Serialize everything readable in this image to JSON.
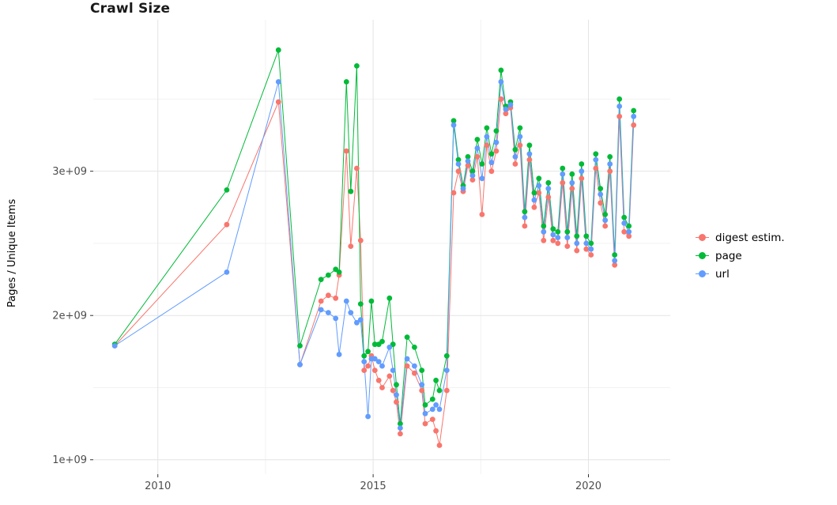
{
  "chart_data": {
    "type": "line",
    "title": "Crawl Size",
    "xlabel": "",
    "ylabel": "Pages / Unique Items",
    "y_unit": "values in billions (1e9)",
    "xlim": [
      2008.5,
      2021.9
    ],
    "ylim_billions": [
      0.9,
      4.05
    ],
    "grid": "major light-gray gridlines on white panel",
    "legend_position": "right",
    "x_ticks": [
      {
        "value": 2010,
        "label": "2010"
      },
      {
        "value": 2015,
        "label": "2015"
      },
      {
        "value": 2020,
        "label": "2020"
      }
    ],
    "y_ticks": [
      {
        "value": 1,
        "label": "1e+09"
      },
      {
        "value": 2,
        "label": "2e+09"
      },
      {
        "value": 3,
        "label": "3e+09"
      }
    ],
    "x_minor": [
      2012.5,
      2017.5
    ],
    "y_minor": [
      1.5,
      2.5,
      3.5
    ],
    "x": [
      2009.0,
      2011.6,
      2012.8,
      2013.3,
      2013.79,
      2013.96,
      2014.13,
      2014.21,
      2014.38,
      2014.48,
      2014.62,
      2014.71,
      2014.79,
      2014.88,
      2014.96,
      2015.04,
      2015.13,
      2015.21,
      2015.38,
      2015.46,
      2015.54,
      2015.63,
      2015.79,
      2015.96,
      2016.13,
      2016.21,
      2016.38,
      2016.46,
      2016.54,
      2016.71,
      2016.87,
      2016.98,
      2017.09,
      2017.2,
      2017.31,
      2017.42,
      2017.53,
      2017.64,
      2017.75,
      2017.86,
      2017.97,
      2018.08,
      2018.19,
      2018.3,
      2018.41,
      2018.52,
      2018.63,
      2018.74,
      2018.85,
      2018.96,
      2019.07,
      2019.18,
      2019.29,
      2019.4,
      2019.51,
      2019.62,
      2019.73,
      2019.84,
      2019.95,
      2020.06,
      2020.17,
      2020.28,
      2020.39,
      2020.5,
      2020.61,
      2020.72,
      2020.83,
      2020.94,
      2021.05
    ],
    "series": [
      {
        "name": "digest estim.",
        "color": "#F8766D",
        "values": [
          1.79,
          2.63,
          3.48,
          1.66,
          2.1,
          2.14,
          2.12,
          2.28,
          3.14,
          2.48,
          3.02,
          2.52,
          1.62,
          1.65,
          1.72,
          1.62,
          1.55,
          1.5,
          1.58,
          1.48,
          1.4,
          1.18,
          1.65,
          1.6,
          1.48,
          1.25,
          1.28,
          1.2,
          1.1,
          1.48,
          2.85,
          3.0,
          2.86,
          3.04,
          2.94,
          3.1,
          2.7,
          3.18,
          3.0,
          3.14,
          3.5,
          3.4,
          3.44,
          3.05,
          3.18,
          2.62,
          3.08,
          2.75,
          2.85,
          2.52,
          2.82,
          2.52,
          2.5,
          2.92,
          2.48,
          2.88,
          2.45,
          2.95,
          2.46,
          2.42,
          3.02,
          2.78,
          2.62,
          3.0,
          2.35,
          3.38,
          2.58,
          2.55,
          3.32
        ]
      },
      {
        "name": "page",
        "color": "#00BA38",
        "values": [
          1.8,
          2.87,
          3.84,
          1.79,
          2.25,
          2.28,
          2.32,
          2.3,
          3.62,
          2.86,
          3.73,
          2.08,
          1.72,
          1.75,
          2.1,
          1.8,
          1.8,
          1.82,
          2.12,
          1.8,
          1.52,
          1.25,
          1.85,
          1.78,
          1.62,
          1.38,
          1.42,
          1.55,
          1.48,
          1.72,
          3.35,
          3.08,
          2.9,
          3.1,
          3.0,
          3.22,
          3.05,
          3.3,
          3.12,
          3.28,
          3.7,
          3.45,
          3.48,
          3.15,
          3.3,
          2.72,
          3.18,
          2.85,
          2.95,
          2.62,
          2.92,
          2.6,
          2.58,
          3.02,
          2.58,
          2.98,
          2.55,
          3.05,
          2.55,
          2.5,
          3.12,
          2.88,
          2.7,
          3.1,
          2.42,
          3.5,
          2.68,
          2.62,
          3.42
        ]
      },
      {
        "name": "url",
        "color": "#619CFF",
        "values": [
          1.79,
          2.3,
          3.62,
          1.66,
          2.04,
          2.02,
          1.98,
          1.73,
          2.1,
          2.02,
          1.95,
          1.97,
          1.68,
          1.3,
          1.7,
          1.7,
          1.68,
          1.65,
          1.78,
          1.62,
          1.45,
          1.22,
          1.7,
          1.65,
          1.52,
          1.32,
          1.35,
          1.38,
          1.35,
          1.62,
          3.32,
          3.05,
          2.88,
          3.07,
          2.97,
          3.16,
          2.95,
          3.24,
          3.06,
          3.2,
          3.62,
          3.43,
          3.46,
          3.1,
          3.24,
          2.68,
          3.12,
          2.8,
          2.9,
          2.58,
          2.88,
          2.56,
          2.54,
          2.98,
          2.54,
          2.92,
          2.5,
          3.0,
          2.5,
          2.46,
          3.08,
          2.84,
          2.66,
          3.05,
          2.38,
          3.45,
          2.64,
          2.58,
          3.38
        ]
      }
    ]
  }
}
